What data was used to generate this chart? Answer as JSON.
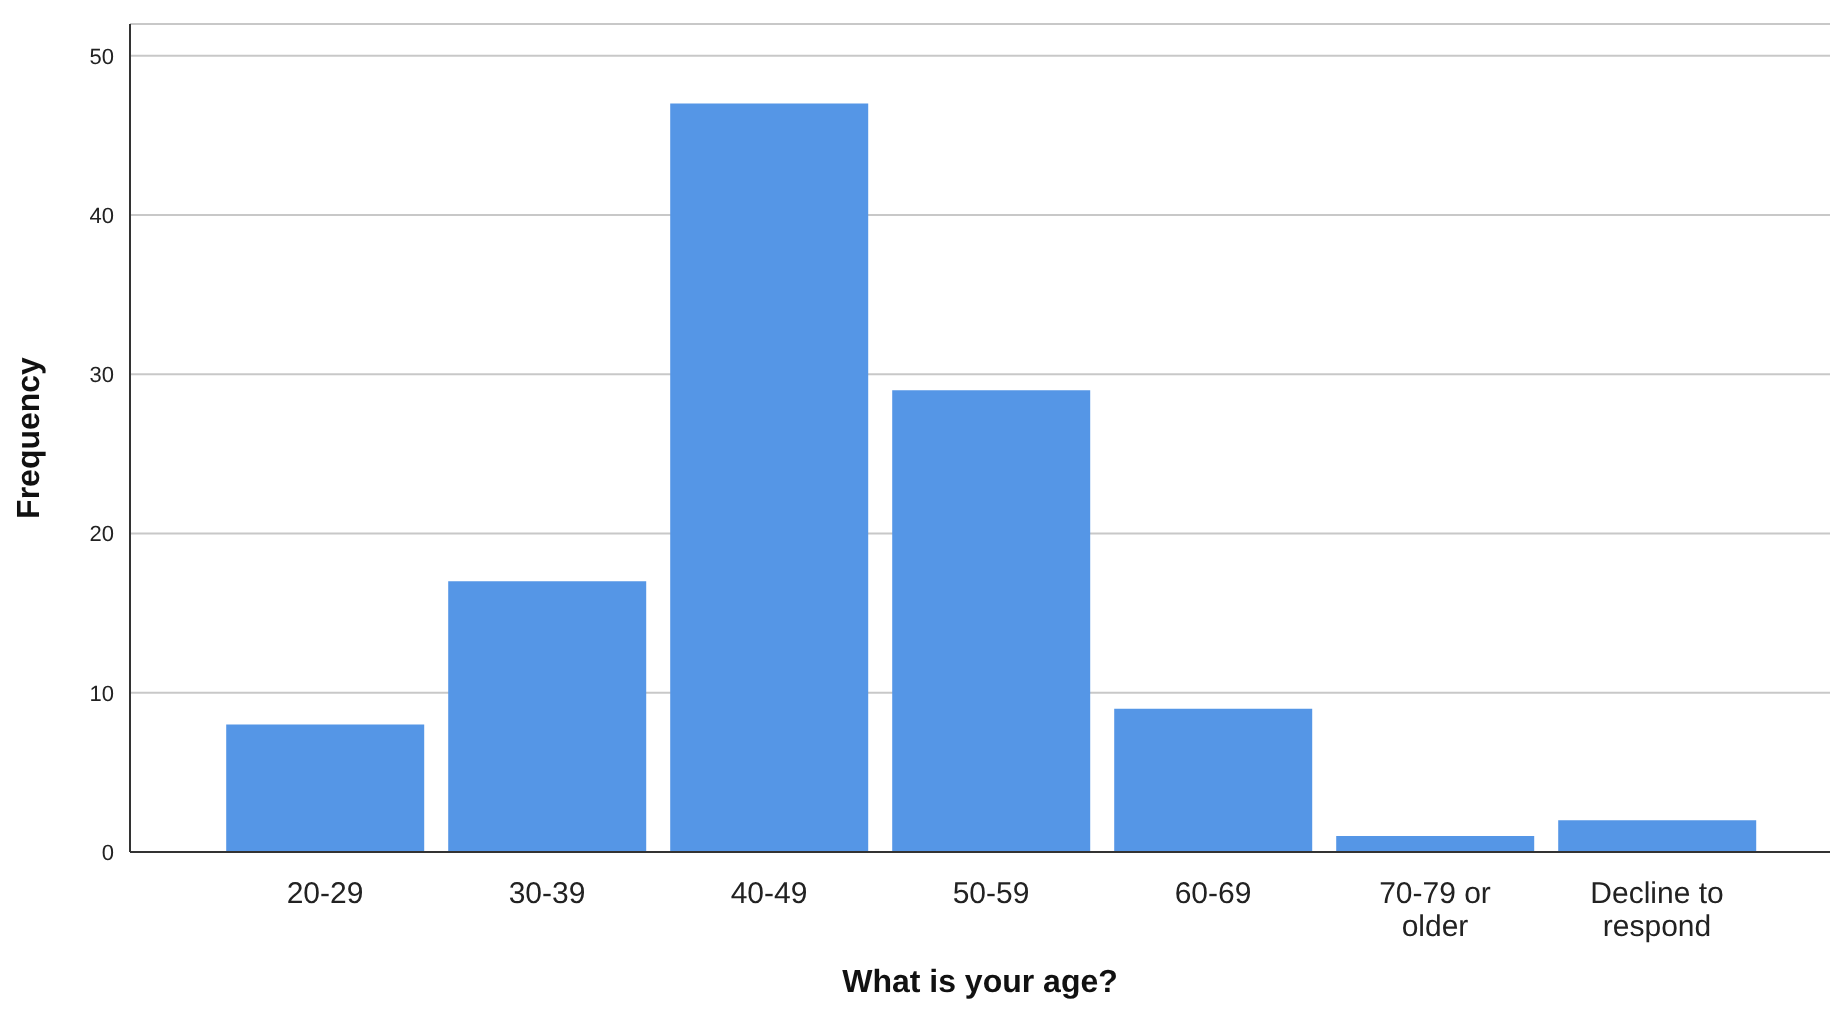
{
  "chart_data": {
    "type": "bar",
    "xlabel": "What is your age?",
    "ylabel": "Frequency",
    "categories": [
      "20-29",
      "30-39",
      "40-49",
      "50-59",
      "60-69",
      "70-79 or older",
      "Decline to respond"
    ],
    "values": [
      8,
      17,
      47,
      29,
      9,
      1,
      2
    ],
    "color": "#5596e6",
    "ylim": [
      0,
      52
    ],
    "yticks": [
      0,
      10,
      20,
      30,
      40,
      50
    ],
    "grid": "y"
  }
}
